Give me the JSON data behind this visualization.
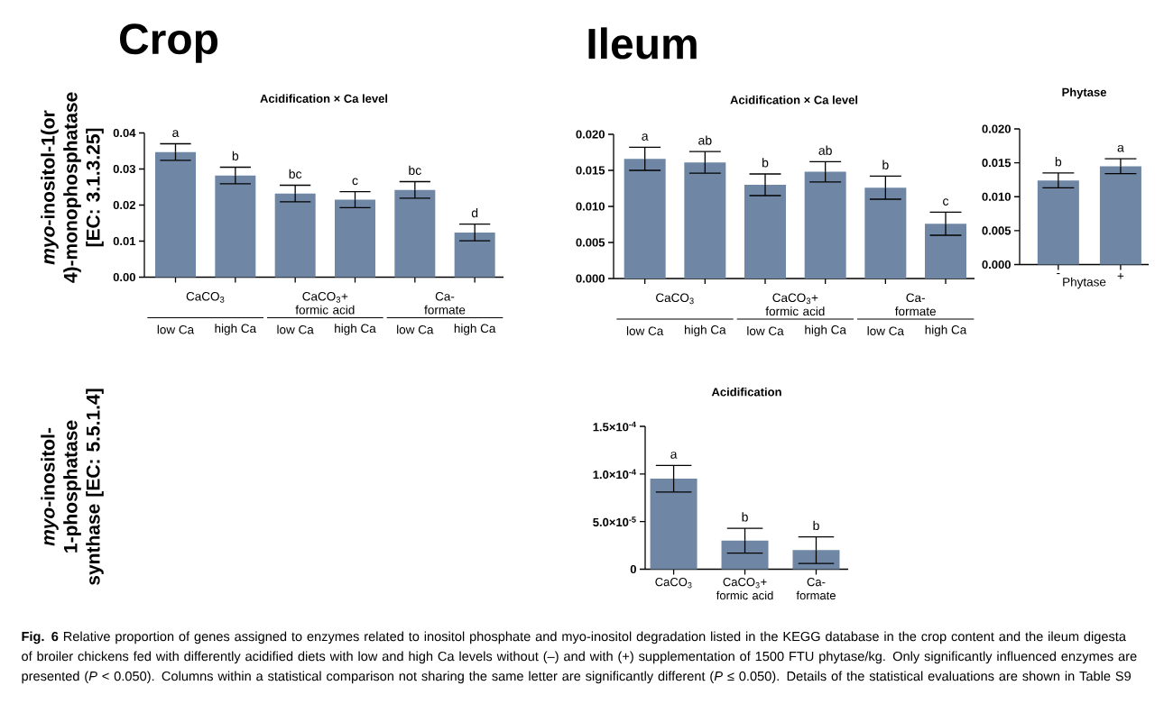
{
  "chart_data": [
    {
      "type": "bar",
      "title": "Acidification × Ca level",
      "ylabel": "*myo*-inositol-1(or 4)-monophosphatase [EC: 3.1.3.25]",
      "categories": [
        "low Ca",
        "high Ca",
        "low Ca",
        "high Ca",
        "low Ca",
        "high Ca"
      ],
      "values": [
        0.0347,
        0.0282,
        0.0232,
        0.0215,
        0.0242,
        0.0124
      ],
      "errors": [
        0.0023,
        0.0023,
        0.0023,
        0.0022,
        0.0023,
        0.0023
      ],
      "value_labels": [
        "a",
        "b",
        "bc",
        "c",
        "bc",
        "d"
      ],
      "color": "#6f87a4",
      "ylim": [
        0,
        0.04
      ],
      "yticks": [
        {
          "value": 0,
          "label": "0.00"
        },
        {
          "value": 0.01,
          "label": "0.01"
        },
        {
          "value": 0.02,
          "label": "0.02"
        },
        {
          "value": 0.03,
          "label": "0.03"
        },
        {
          "value": 0.04,
          "label": "0.04"
        }
      ],
      "annotations": [
        "Crop",
        "CaCO$_{3}$",
        "CaCO$_{3}$+ formic acid",
        "Ca- formate"
      ]
    },
    {
      "type": "bar",
      "title": "Acidification × Ca level",
      "categories": [
        "low Ca",
        "high Ca",
        "low Ca",
        "high Ca",
        "low Ca",
        "high Ca"
      ],
      "values": [
        0.0166,
        0.0161,
        0.013,
        0.0148,
        0.0126,
        0.0076
      ],
      "errors": [
        0.0016,
        0.0015,
        0.0015,
        0.0014,
        0.0016,
        0.0016
      ],
      "value_labels": [
        "a",
        "ab",
        "b",
        "ab",
        "b",
        "c"
      ],
      "color": "#6f87a4",
      "ylim": [
        0,
        0.02
      ],
      "yticks": [
        {
          "value": 0,
          "label": "0.000"
        },
        {
          "value": 0.005,
          "label": "0.005"
        },
        {
          "value": 0.01,
          "label": "0.010"
        },
        {
          "value": 0.015,
          "label": "0.015"
        },
        {
          "value": 0.02,
          "label": "0.020"
        }
      ],
      "annotations": [
        "Ileum",
        "CaCO$_{3}$",
        "CaCO$_{3}$+ formic acid",
        "Ca- formate"
      ]
    },
    {
      "type": "bar",
      "title": "Phytase",
      "xlabel": "Phytase",
      "categories": [
        "-",
        "+"
      ],
      "values": [
        0.0124,
        0.0145
      ],
      "errors": [
        0.0011,
        0.0011
      ],
      "value_labels": [
        "b",
        "a"
      ],
      "color": "#6f87a4",
      "ylim": [
        0,
        0.02
      ],
      "yticks": [
        {
          "value": 0,
          "label": "0.000"
        },
        {
          "value": 0.005,
          "label": "0.005"
        },
        {
          "value": 0.01,
          "label": "0.010"
        },
        {
          "value": 0.015,
          "label": "0.015"
        },
        {
          "value": 0.02,
          "label": "0.020"
        }
      ]
    },
    {
      "type": "bar",
      "title": "Acidification",
      "ylabel": "*myo*-inositol-1-phosphatase synthase [EC: 5.5.1.4]",
      "categories": [
        "CaCO$_{3}$",
        "CaCO$_{3}$+ formic acid",
        "Ca- formate"
      ],
      "values": [
        9.5e-05,
        3e-05,
        2e-05
      ],
      "errors": [
        1.4e-05,
        1.3e-05,
        1.4e-05
      ],
      "value_labels": [
        "a",
        "b",
        "b"
      ],
      "color": "#6f87a4",
      "ylim": [
        0,
        0.00015
      ],
      "yticks": [
        {
          "value": 0,
          "label": "0"
        },
        {
          "value": 5e-05,
          "label": "5.0×10$^{-5}$"
        },
        {
          "value": 0.0001,
          "label": "1.0×10$^{-4}$"
        },
        {
          "value": 0.00015,
          "label": "1.5×10$^{-4}$"
        }
      ],
      "annotations": [
        "**Fig. 6** Relative proportion of genes assigned to enzymes related to inositol phosphate and myo-inositol degradation listed in the KEGG database in the crop content and the ileum digesta of broiler chickens fed with differently acidified diets with low and high Ca levels without (–) and with (+) supplementation of 1500 FTU phytase/kg. Only significantly influenced enzymes are presented (*P* < 0.050). Columns within a statistical comparison not sharing the same letter are significantly different (*P* ≤ 0.050). Details of the statistical evaluations are shown in Table S9"
      ]
    }
  ]
}
